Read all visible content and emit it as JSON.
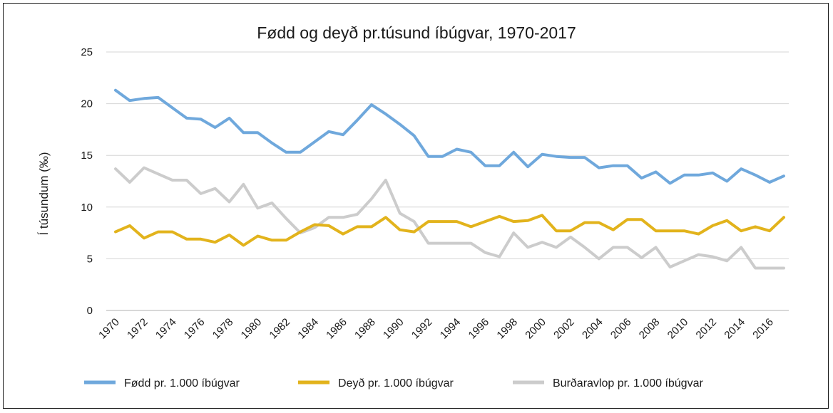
{
  "chart_data": {
    "type": "line",
    "title": "Fødd og deyð pr.túsund íbúgvar, 1970-2017",
    "xlabel": "",
    "ylabel": "Í túsundum (‰)",
    "ylim": [
      0,
      25
    ],
    "y_ticks": [
      "0",
      "5",
      "10",
      "15",
      "20",
      "25"
    ],
    "x_tick_labels": [
      "1970",
      "1972",
      "1974",
      "1976",
      "1978",
      "1980",
      "1982",
      "1984",
      "1986",
      "1988",
      "1990",
      "1992",
      "1994",
      "1996",
      "1998",
      "2000",
      "2002",
      "2004",
      "2006",
      "2008",
      "2010",
      "2012",
      "2014",
      "2016"
    ],
    "x": [
      1970,
      1971,
      1972,
      1973,
      1974,
      1975,
      1976,
      1977,
      1978,
      1979,
      1980,
      1981,
      1982,
      1983,
      1984,
      1985,
      1986,
      1987,
      1988,
      1989,
      1990,
      1991,
      1992,
      1993,
      1994,
      1995,
      1996,
      1997,
      1998,
      1999,
      2000,
      2001,
      2002,
      2003,
      2004,
      2005,
      2006,
      2007,
      2008,
      2009,
      2010,
      2011,
      2012,
      2013,
      2014,
      2015,
      2016,
      2017
    ],
    "grid": true,
    "legend_position": "bottom",
    "series": [
      {
        "name": "Fødd pr. 1.000 íbúgvar",
        "color": "#6fa8dc",
        "values": [
          21.3,
          20.3,
          20.5,
          20.6,
          19.6,
          18.6,
          18.5,
          17.7,
          18.6,
          17.2,
          17.2,
          16.2,
          15.3,
          15.3,
          16.3,
          17.3,
          17.0,
          18.4,
          19.9,
          19.0,
          18.0,
          16.9,
          14.9,
          14.9,
          15.6,
          15.3,
          14.0,
          14.0,
          15.3,
          13.9,
          15.1,
          14.9,
          14.8,
          14.8,
          13.8,
          14.0,
          14.0,
          12.8,
          13.4,
          12.3,
          13.1,
          13.1,
          13.3,
          12.5,
          13.7,
          13.1,
          12.4,
          13.0
        ]
      },
      {
        "name": "Deyð pr. 1.000 íbúgvar",
        "color": "#e2b31c",
        "values": [
          7.6,
          8.2,
          7.0,
          7.6,
          7.6,
          6.9,
          6.9,
          6.6,
          7.3,
          6.3,
          7.2,
          6.8,
          6.8,
          7.6,
          8.3,
          8.2,
          7.4,
          8.1,
          8.1,
          9.0,
          7.8,
          7.6,
          8.6,
          8.6,
          8.6,
          8.1,
          8.6,
          9.1,
          8.6,
          8.7,
          9.2,
          7.7,
          7.7,
          8.5,
          8.5,
          7.8,
          8.8,
          8.8,
          7.7,
          7.7,
          7.7,
          7.4,
          8.2,
          8.7,
          7.7,
          8.1,
          7.7,
          9.0
        ]
      },
      {
        "name": "Burðaravlop pr. 1.000 íbúgvar",
        "color": "#cccccc",
        "values": [
          13.7,
          12.4,
          13.8,
          13.2,
          12.6,
          12.6,
          11.3,
          11.8,
          10.5,
          12.2,
          9.9,
          10.4,
          8.9,
          7.5,
          8.0,
          9.0,
          9.0,
          9.3,
          10.8,
          12.6,
          9.4,
          8.6,
          6.5,
          6.5,
          6.5,
          6.5,
          5.6,
          5.2,
          7.5,
          6.1,
          6.6,
          6.1,
          7.1,
          6.1,
          5.0,
          6.1,
          6.1,
          5.1,
          6.1,
          4.2,
          4.8,
          5.4,
          5.2,
          4.8,
          6.1,
          4.1,
          4.1,
          4.1
        ]
      }
    ]
  }
}
